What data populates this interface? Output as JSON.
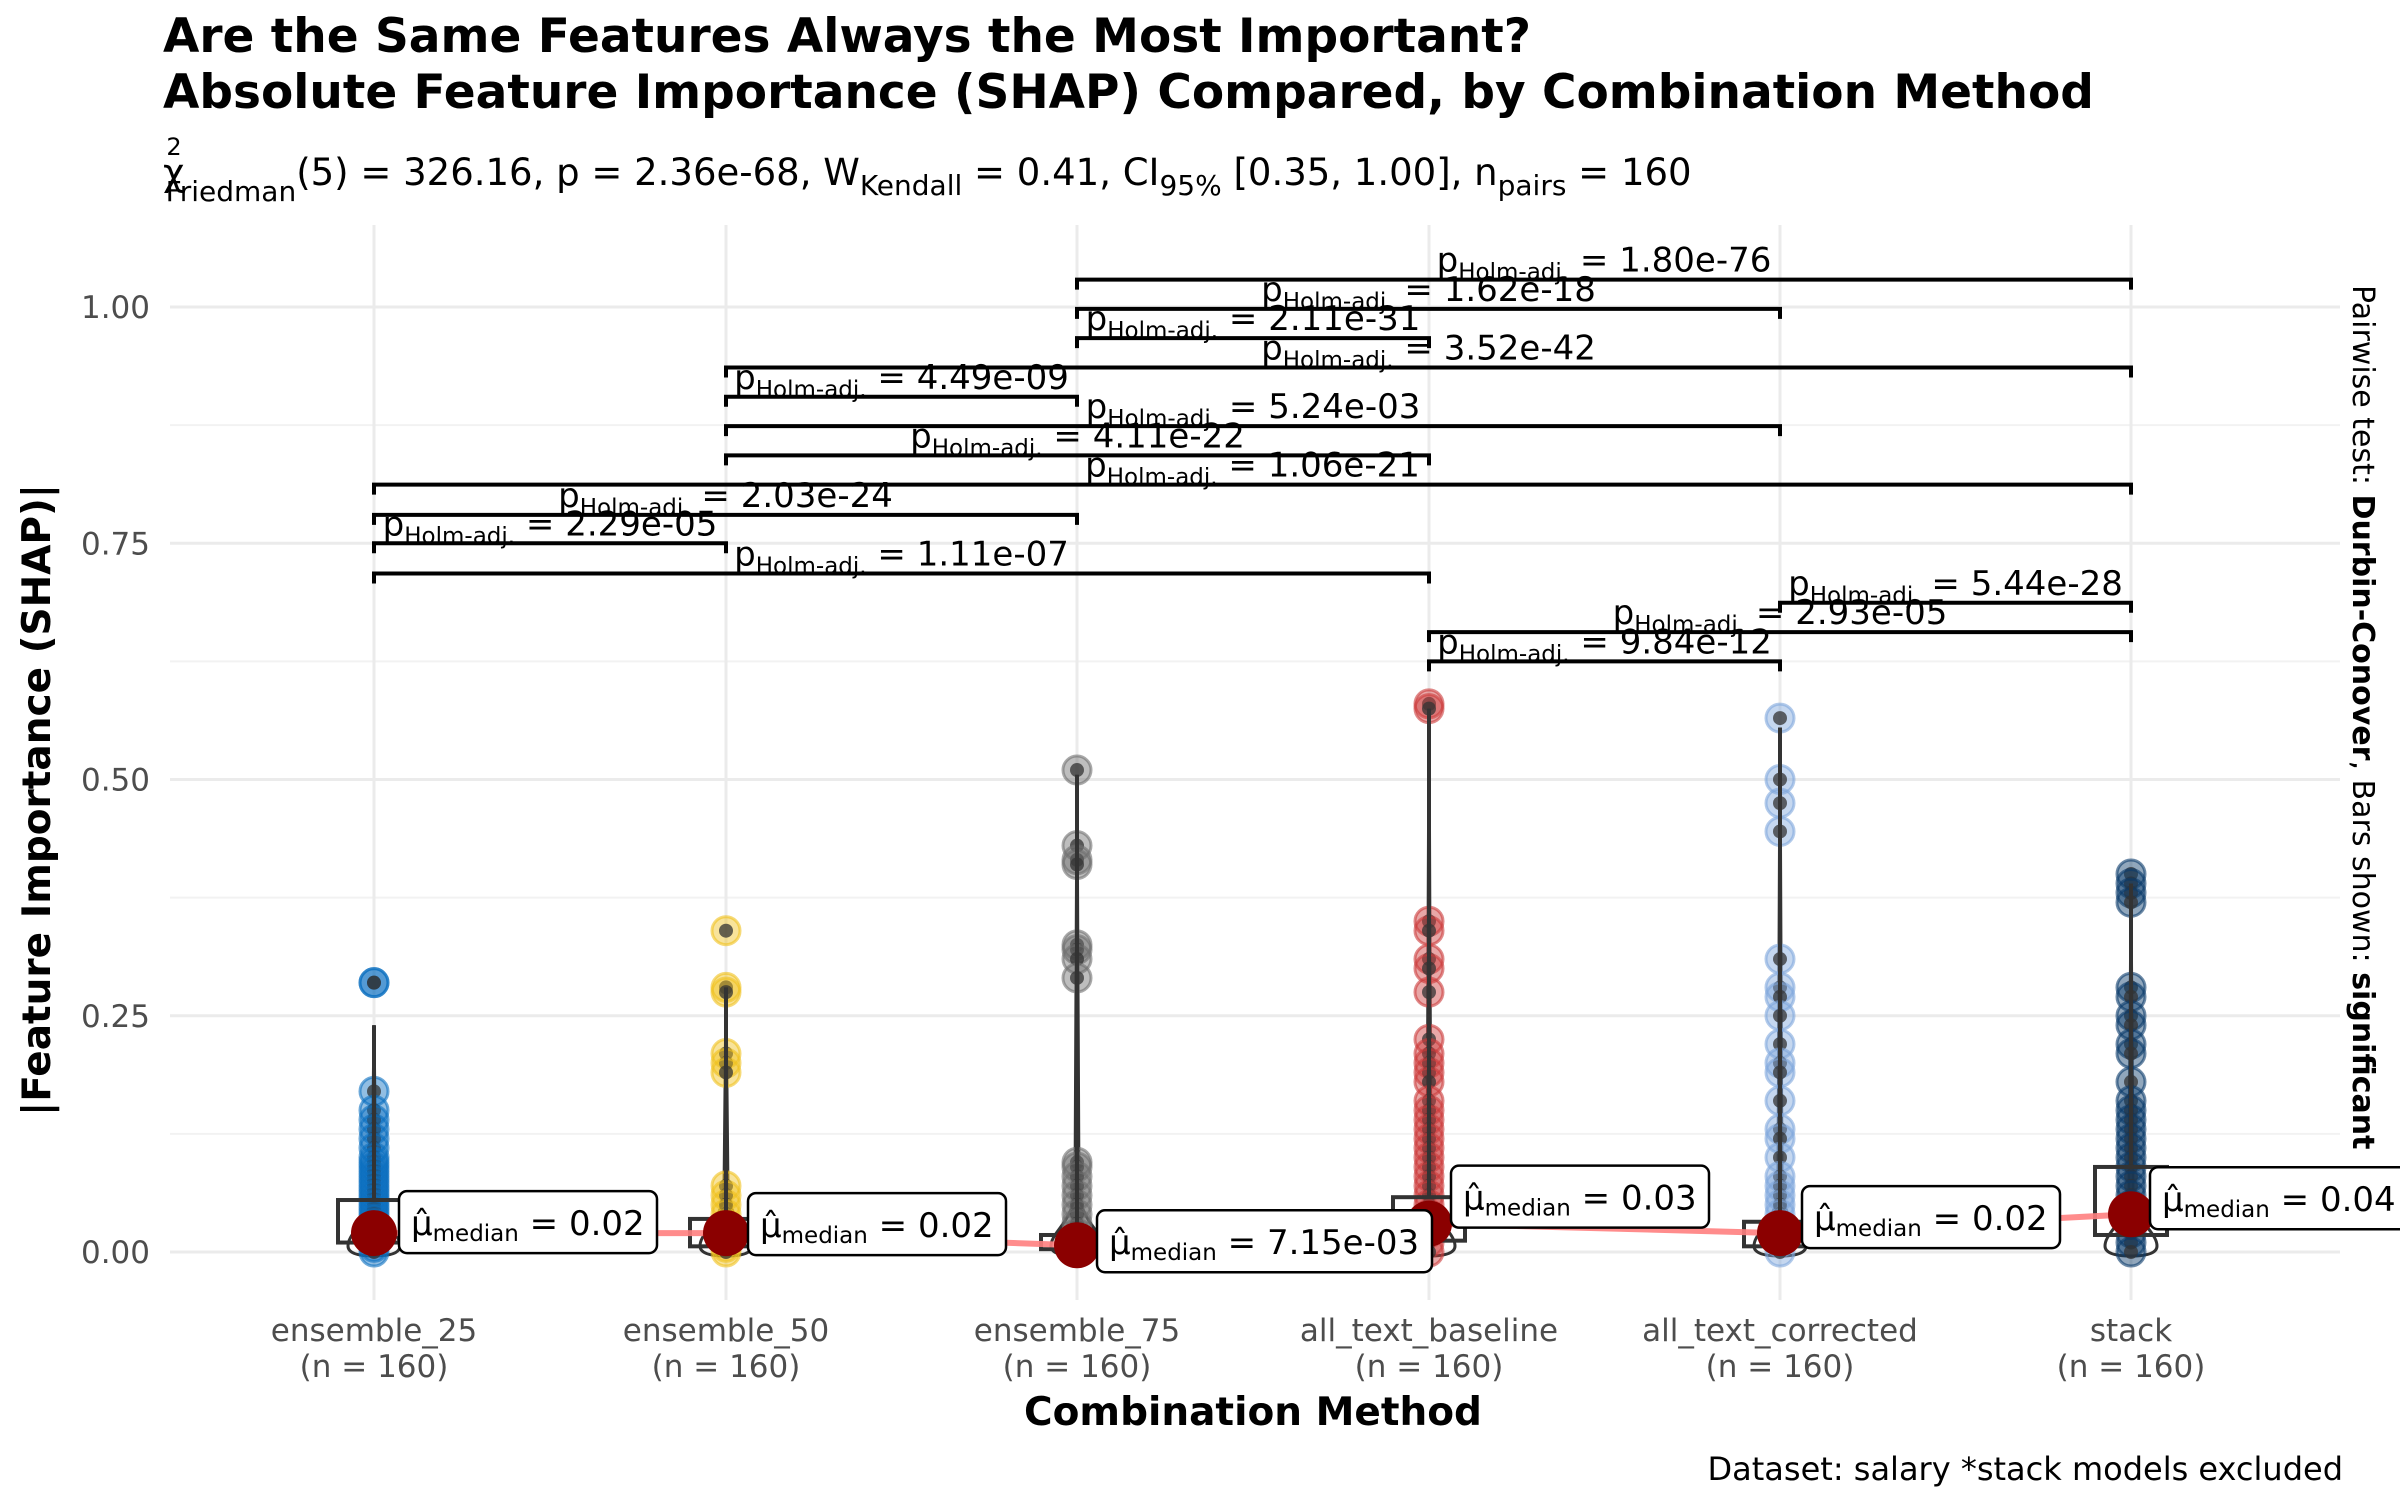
{
  "chart_data": {
    "type": "violin-box-scatter",
    "title_line1": "Are the Same Features Always the Most Important?",
    "title_line2": "Absolute Feature Importance (SHAP) Compared, by Combination Method",
    "subtitle": {
      "chi_sym": "χ",
      "chi_sup": "2",
      "chi_sub": "Friedman",
      "part1": "(5) = 326.16, p = 2.36e-68, ",
      "w_sym": "W",
      "w_sub": "Kendall",
      "part2": " = 0.41, CI",
      "ci_sub": "95%",
      "part3": " [0.35, 1.00], n",
      "n_sub": "pairs",
      "part4": " = 160"
    },
    "xlabel": "Combination Method",
    "ylabel": "|Feature Importance (SHAP)|",
    "ylim": [
      -0.055,
      1.075
    ],
    "yticks": [
      0.0,
      0.25,
      0.5,
      0.75,
      1.0
    ],
    "ytick_labels": [
      "0.00",
      "0.25",
      "0.50",
      "0.75",
      "1.00"
    ],
    "grid": true,
    "categories": [
      "ensemble_25",
      "ensemble_50",
      "ensemble_75",
      "all_text_baseline",
      "all_text_corrected",
      "stack"
    ],
    "category_n": [
      "(n = 160)",
      "(n = 160)",
      "(n = 160)",
      "(n = 160)",
      "(n = 160)",
      "(n = 160)"
    ],
    "colors": [
      "#0c6fc0",
      "#f0c11e",
      "#6f6f6f",
      "#cc3b3b",
      "#7ea6dc",
      "#0a3b6a"
    ],
    "median_color": "#8b0000",
    "median_line_color": "#ff7f7f",
    "medians": [
      0.02,
      0.02,
      0.00715,
      0.03,
      0.02,
      0.04
    ],
    "median_labels": [
      "0.02",
      "0.02",
      "7.15e-03",
      "0.03",
      "0.02",
      "0.04"
    ],
    "median_label_prefix": "μ̂",
    "median_label_sub": "median",
    "boxes": [
      {
        "q1": 0.01,
        "q3": 0.055,
        "max": 0.24
      },
      {
        "q1": 0.006,
        "q3": 0.035,
        "max": 0.28
      },
      {
        "q1": 0.003,
        "q3": 0.018,
        "max": 0.505
      },
      {
        "q1": 0.012,
        "q3": 0.058,
        "max": 0.575
      },
      {
        "q1": 0.006,
        "q3": 0.032,
        "max": 0.555
      },
      {
        "q1": 0.018,
        "q3": 0.09,
        "max": 0.39
      }
    ],
    "points": [
      [
        0.285,
        0.285,
        0.17,
        0.15,
        0.14,
        0.13,
        0.12,
        0.11,
        0.1,
        0.095,
        0.09,
        0.085,
        0.08,
        0.075,
        0.07,
        0.065,
        0.06,
        0.055,
        0.05,
        0.045,
        0.04,
        0.035,
        0.03,
        0.025,
        0.02,
        0.015,
        0.01,
        0.005,
        0.0
      ],
      [
        0.34,
        0.28,
        0.275,
        0.21,
        0.2,
        0.19,
        0.07,
        0.06,
        0.05,
        0.04,
        0.03,
        0.02,
        0.015,
        0.01,
        0.005,
        0.0
      ],
      [
        0.51,
        0.43,
        0.415,
        0.41,
        0.325,
        0.32,
        0.31,
        0.29,
        0.095,
        0.09,
        0.08,
        0.07,
        0.06,
        0.05,
        0.04,
        0.03,
        0.02,
        0.01,
        0.0
      ],
      [
        0.58,
        0.575,
        0.35,
        0.34,
        0.31,
        0.3,
        0.275,
        0.225,
        0.21,
        0.2,
        0.19,
        0.18,
        0.16,
        0.15,
        0.14,
        0.13,
        0.12,
        0.11,
        0.1,
        0.09,
        0.08,
        0.07,
        0.06,
        0.05,
        0.04,
        0.03,
        0.02,
        0.01,
        0.0
      ],
      [
        0.565,
        0.5,
        0.475,
        0.445,
        0.31,
        0.28,
        0.27,
        0.25,
        0.22,
        0.2,
        0.19,
        0.16,
        0.13,
        0.12,
        0.1,
        0.08,
        0.07,
        0.06,
        0.05,
        0.04,
        0.03,
        0.02,
        0.01,
        0.0
      ],
      [
        0.4,
        0.39,
        0.38,
        0.37,
        0.28,
        0.27,
        0.25,
        0.24,
        0.22,
        0.21,
        0.18,
        0.16,
        0.15,
        0.14,
        0.13,
        0.12,
        0.11,
        0.1,
        0.09,
        0.08,
        0.07,
        0.06,
        0.05,
        0.04,
        0.03,
        0.02,
        0.01,
        0.0
      ]
    ],
    "pairwise": [
      {
        "from": 0,
        "to": 3,
        "y": 0.718,
        "label": "1.11e-07"
      },
      {
        "from": 0,
        "to": 1,
        "y": 0.75,
        "label": "2.29e-05"
      },
      {
        "from": 0,
        "to": 2,
        "y": 0.78,
        "label": "2.03e-24"
      },
      {
        "from": 0,
        "to": 5,
        "y": 0.812,
        "label": "1.06e-21"
      },
      {
        "from": 1,
        "to": 3,
        "y": 0.843,
        "label": "4.11e-22"
      },
      {
        "from": 1,
        "to": 4,
        "y": 0.874,
        "label": "5.24e-03"
      },
      {
        "from": 1,
        "to": 2,
        "y": 0.905,
        "label": "4.49e-09"
      },
      {
        "from": 1,
        "to": 5,
        "y": 0.936,
        "label": "3.52e-42"
      },
      {
        "from": 2,
        "to": 3,
        "y": 0.967,
        "label": "2.11e-31"
      },
      {
        "from": 2,
        "to": 4,
        "y": 0.998,
        "label": "1.62e-18"
      },
      {
        "from": 2,
        "to": 5,
        "y": 1.029,
        "label": "1.80e-76"
      },
      {
        "from": 3,
        "to": 4,
        "y": 0.625,
        "label": "9.84e-12"
      },
      {
        "from": 3,
        "to": 5,
        "y": 0.656,
        "label": "2.93e-05"
      },
      {
        "from": 4,
        "to": 5,
        "y": 0.687,
        "label": "5.44e-28"
      }
    ],
    "pair_label_prefix": "p",
    "pair_label_sub": "Holm-adj.",
    "side_text_plain1": "Pairwise test: ",
    "side_text_bold1": "Durbin-Conover",
    "side_text_plain2": ", Bars shown: ",
    "side_text_bold2": "significant",
    "caption": "Dataset:  salary *stack models excluded"
  }
}
